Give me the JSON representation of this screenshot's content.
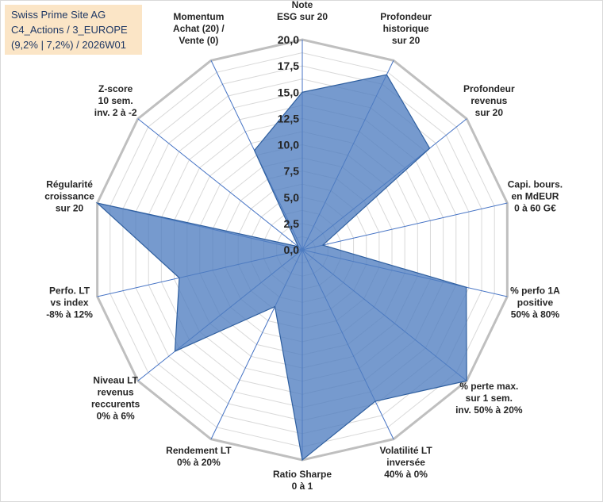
{
  "header": {
    "line1": "Swiss Prime Site AG",
    "line2": "C4_Actions / 3_EUROPE",
    "line3": "(9,2% | 7,2%) / 2026W01"
  },
  "colors": {
    "fill": "#4f7ec0",
    "stroke": "#2f5f9f",
    "grid": "#d9d9d9",
    "outer_ring": "#bfbfbf",
    "spoke": "#4472c4",
    "title_bg": "#fbe5c6"
  },
  "chart_data": {
    "type": "radar",
    "title": "",
    "rmin": 0,
    "rmax": 20,
    "tick_step": 2.5,
    "tick_labels": [
      "0,0",
      "2,5",
      "5,0",
      "7,5",
      "10,0",
      "12,5",
      "15,0",
      "17,5",
      "20,0"
    ],
    "axes": [
      {
        "label": [
          "Note",
          "ESG sur 20"
        ],
        "value": 15.0
      },
      {
        "label": [
          "Profondeur",
          "historique",
          "sur 20"
        ],
        "value": 18.5
      },
      {
        "label": [
          "Profondeur",
          "revenus",
          "sur 20"
        ],
        "value": 15.5
      },
      {
        "label": [
          "Capi. bours.",
          "en MdEUR",
          "0 à 60 G€"
        ],
        "value": 2.0
      },
      {
        "label": [
          "% perfo 1A",
          "positive",
          "50% à 80%"
        ],
        "value": 16.0
      },
      {
        "label": [
          "% perte max.",
          "sur 1 sem.",
          "inv. 50% à 20%"
        ],
        "value": 20.0
      },
      {
        "label": [
          "Volatilité LT",
          "inversée",
          "40% à 0%"
        ],
        "value": 16.0
      },
      {
        "label": [
          "Ratio Sharpe",
          "0 à 1"
        ],
        "value": 20.0
      },
      {
        "label": [
          "Rendement LT",
          "0% à 20%"
        ],
        "value": 6.0
      },
      {
        "label": [
          "Niveau LT",
          "revenus",
          "reccurents",
          "0% à 6%"
        ],
        "value": 15.5
      },
      {
        "label": [
          "Perfo. LT",
          "vs index",
          "-8% à 12%"
        ],
        "value": 12.0
      },
      {
        "label": [
          "Régularité",
          "croissance",
          "sur 20"
        ],
        "value": 20.0
      },
      {
        "label": [
          "Z-score",
          "10 sem.",
          "inv. 2 à -2"
        ],
        "value": 0.5
      },
      {
        "label": [
          "Momentum",
          "Achat (20) /",
          "Vente (0)"
        ],
        "value": 10.5
      }
    ]
  }
}
